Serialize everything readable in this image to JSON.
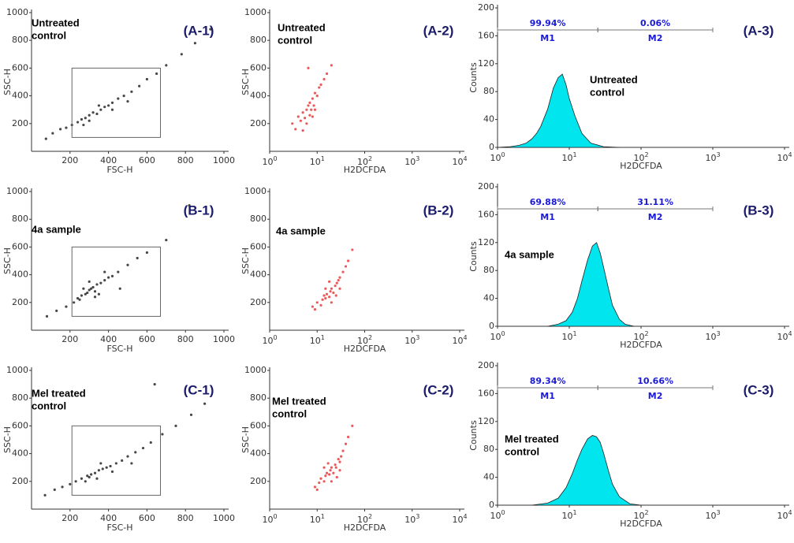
{
  "chart_data": [
    {
      "type": "scatter",
      "panel_label": "(A-1)",
      "annotation": [
        "Untreated",
        "control"
      ],
      "xlabel": "FSC-H",
      "ylabel": "SSC-H",
      "color": "#1a1a1a",
      "x": [
        75,
        110,
        150,
        180,
        210,
        240,
        260,
        280,
        300,
        320,
        340,
        360,
        380,
        400,
        420,
        450,
        480,
        520,
        560,
        600,
        650,
        700,
        780,
        850,
        930,
        300,
        350,
        270,
        420,
        500
      ],
      "y": [
        90,
        130,
        160,
        170,
        190,
        210,
        230,
        240,
        260,
        280,
        270,
        300,
        320,
        330,
        350,
        380,
        400,
        430,
        470,
        520,
        560,
        620,
        700,
        780,
        880,
        220,
        330,
        190,
        300,
        360
      ],
      "gate": {
        "x": [
          210,
          670
        ],
        "y": [
          100,
          600
        ]
      },
      "xlim": [
        0,
        1000
      ],
      "xticks": [
        200,
        400,
        600,
        800,
        1000
      ],
      "ylim": [
        0,
        1000
      ],
      "yticks": [
        200,
        400,
        600,
        800,
        1000
      ]
    },
    {
      "type": "scatter",
      "panel_label": "(A-2)",
      "annotation": [
        "Untreated",
        "control"
      ],
      "xlabel": "H2DCFDA",
      "ylabel": "SSC-H",
      "color": "#e83030",
      "xscale": "log",
      "x": [
        3,
        3.5,
        4,
        4.5,
        5,
        5.5,
        6,
        6.5,
        7,
        7,
        7.5,
        8,
        8.5,
        9,
        10,
        11,
        12,
        14,
        16,
        20,
        5,
        6,
        8,
        9,
        6.5
      ],
      "y": [
        200,
        160,
        250,
        220,
        280,
        240,
        300,
        330,
        260,
        350,
        300,
        380,
        330,
        420,
        400,
        460,
        480,
        520,
        560,
        620,
        150,
        200,
        250,
        300,
        600
      ],
      "xlim": [
        1,
        10000
      ],
      "xticks": [
        {
          "value": 1,
          "label": "10",
          "sup": "0"
        },
        {
          "value": 10,
          "label": "10",
          "sup": "1"
        },
        {
          "value": 100,
          "label": "10",
          "sup": "2"
        },
        {
          "value": 1000,
          "label": "10",
          "sup": "3"
        },
        {
          "value": 10000,
          "label": "10",
          "sup": "4"
        }
      ],
      "ylim": [
        0,
        1000
      ],
      "yticks": [
        200,
        400,
        600,
        800,
        1000
      ]
    },
    {
      "type": "area",
      "panel_label": "(A-3)",
      "annotation": [
        "Untreated",
        "control"
      ],
      "xlabel": "H2DCFDA",
      "ylabel": "Counts",
      "color": "#00e5ee",
      "xscale": "log",
      "x": [
        1,
        1.5,
        2,
        2.5,
        3,
        3.5,
        4,
        5,
        6,
        7,
        8,
        9,
        10,
        12,
        15,
        20,
        30,
        50
      ],
      "values": [
        0,
        1,
        3,
        6,
        12,
        20,
        30,
        55,
        85,
        100,
        105,
        90,
        70,
        45,
        20,
        6,
        1,
        0
      ],
      "markers": [
        {
          "name": "M1",
          "range": [
            1,
            25
          ],
          "percent": 99.94,
          "value_label": "99.94%"
        },
        {
          "name": "M2",
          "range": [
            25,
            1000
          ],
          "percent": 0.06,
          "value_label": "0.06%"
        }
      ],
      "xlim": [
        1,
        10000
      ],
      "xticks": [
        {
          "value": 1,
          "label": "10",
          "sup": "0"
        },
        {
          "value": 10,
          "label": "10",
          "sup": "1"
        },
        {
          "value": 100,
          "label": "10",
          "sup": "2"
        },
        {
          "value": 1000,
          "label": "10",
          "sup": "3"
        },
        {
          "value": 10000,
          "label": "10",
          "sup": "4"
        }
      ],
      "ylim": [
        0,
        200
      ],
      "yticks": [
        0,
        40,
        80,
        120,
        160,
        200
      ]
    },
    {
      "type": "scatter",
      "panel_label": "(B-1)",
      "annotation": [
        "4a sample"
      ],
      "xlabel": "FSC-H",
      "ylabel": "SSC-H",
      "color": "#1a1a1a",
      "x": [
        80,
        130,
        180,
        220,
        240,
        260,
        280,
        290,
        300,
        310,
        320,
        330,
        340,
        360,
        380,
        400,
        420,
        450,
        500,
        550,
        600,
        700,
        250,
        350,
        300,
        270,
        330,
        460,
        820,
        380
      ],
      "y": [
        100,
        140,
        170,
        200,
        230,
        250,
        260,
        270,
        290,
        300,
        310,
        280,
        330,
        340,
        360,
        380,
        390,
        420,
        470,
        520,
        560,
        650,
        220,
        260,
        350,
        300,
        240,
        300,
        900,
        420
      ],
      "gate": {
        "x": [
          210,
          670
        ],
        "y": [
          100,
          600
        ]
      },
      "xlim": [
        0,
        1000
      ],
      "xticks": [
        200,
        400,
        600,
        800,
        1000
      ],
      "ylim": [
        0,
        1000
      ],
      "yticks": [
        200,
        400,
        600,
        800,
        1000
      ]
    },
    {
      "type": "scatter",
      "panel_label": "(B-2)",
      "annotation": [
        "4a sample"
      ],
      "xlabel": "H2DCFDA",
      "ylabel": "SSC-H",
      "color": "#e83030",
      "xscale": "log",
      "x": [
        8,
        9,
        10,
        12,
        13,
        14,
        15,
        16,
        18,
        19,
        20,
        22,
        24,
        26,
        28,
        30,
        35,
        40,
        45,
        55,
        15,
        20,
        25,
        30,
        18
      ],
      "y": [
        170,
        150,
        200,
        180,
        220,
        250,
        230,
        260,
        240,
        280,
        300,
        270,
        320,
        340,
        360,
        380,
        420,
        460,
        500,
        580,
        300,
        200,
        250,
        300,
        350
      ],
      "xlim": [
        1,
        10000
      ],
      "xticks": [
        {
          "value": 1,
          "label": "10",
          "sup": "0"
        },
        {
          "value": 10,
          "label": "10",
          "sup": "1"
        },
        {
          "value": 100,
          "label": "10",
          "sup": "2"
        },
        {
          "value": 1000,
          "label": "10",
          "sup": "3"
        },
        {
          "value": 10000,
          "label": "10",
          "sup": "4"
        }
      ],
      "ylim": [
        0,
        1000
      ],
      "yticks": [
        200,
        400,
        600,
        800,
        1000
      ]
    },
    {
      "type": "area",
      "panel_label": "(B-3)",
      "annotation": [
        "4a sample"
      ],
      "xlabel": "H2DCFDA",
      "ylabel": "Counts",
      "color": "#00e5ee",
      "xscale": "log",
      "x": [
        5,
        7,
        9,
        11,
        13,
        15,
        18,
        21,
        24,
        27,
        30,
        35,
        40,
        50,
        60,
        80
      ],
      "values": [
        0,
        3,
        8,
        20,
        40,
        65,
        95,
        115,
        120,
        105,
        85,
        55,
        30,
        10,
        3,
        0
      ],
      "markers": [
        {
          "name": "M1",
          "range": [
            1,
            25
          ],
          "percent": 69.88,
          "value_label": "69.88%"
        },
        {
          "name": "M2",
          "range": [
            25,
            1000
          ],
          "percent": 31.11,
          "value_label": "31.11%"
        }
      ],
      "xlim": [
        1,
        10000
      ],
      "xticks": [
        {
          "value": 1,
          "label": "10",
          "sup": "0"
        },
        {
          "value": 10,
          "label": "10",
          "sup": "1"
        },
        {
          "value": 100,
          "label": "10",
          "sup": "2"
        },
        {
          "value": 1000,
          "label": "10",
          "sup": "3"
        },
        {
          "value": 10000,
          "label": "10",
          "sup": "4"
        }
      ],
      "ylim": [
        0,
        200
      ],
      "yticks": [
        0,
        40,
        80,
        120,
        160,
        200
      ]
    },
    {
      "type": "scatter",
      "panel_label": "(C-1)",
      "annotation": [
        "Mel treated",
        "control"
      ],
      "xlabel": "FSC-H",
      "ylabel": "SSC-H",
      "color": "#1a1a1a",
      "x": [
        70,
        120,
        160,
        200,
        230,
        260,
        290,
        310,
        330,
        350,
        370,
        390,
        410,
        440,
        470,
        500,
        540,
        580,
        620,
        680,
        750,
        830,
        900,
        280,
        360,
        420,
        300,
        340,
        520,
        640
      ],
      "y": [
        100,
        140,
        160,
        180,
        200,
        220,
        240,
        250,
        260,
        280,
        290,
        300,
        310,
        330,
        350,
        380,
        410,
        440,
        480,
        540,
        600,
        680,
        760,
        200,
        330,
        270,
        230,
        220,
        330,
        900
      ],
      "gate": {
        "x": [
          210,
          670
        ],
        "y": [
          100,
          600
        ]
      },
      "xlim": [
        0,
        1000
      ],
      "xticks": [
        200,
        400,
        600,
        800,
        1000
      ],
      "ylim": [
        0,
        1000
      ],
      "yticks": [
        200,
        400,
        600,
        800,
        1000
      ]
    },
    {
      "type": "scatter",
      "panel_label": "(C-2)",
      "annotation": [
        "Mel treated",
        "control"
      ],
      "xlabel": "H2DCFDA",
      "ylabel": "SSC-H",
      "color": "#e83030",
      "xscale": "log",
      "x": [
        9,
        10,
        11,
        12,
        14,
        15,
        16,
        18,
        19,
        20,
        22,
        24,
        25,
        28,
        30,
        32,
        35,
        40,
        45,
        55,
        14,
        20,
        26,
        30,
        17
      ],
      "y": [
        160,
        140,
        190,
        220,
        200,
        240,
        260,
        250,
        280,
        300,
        260,
        320,
        300,
        360,
        340,
        380,
        420,
        470,
        520,
        600,
        300,
        200,
        230,
        280,
        330
      ],
      "xlim": [
        1,
        10000
      ],
      "xticks": [
        {
          "value": 1,
          "label": "10",
          "sup": "0"
        },
        {
          "value": 10,
          "label": "10",
          "sup": "1"
        },
        {
          "value": 100,
          "label": "10",
          "sup": "2"
        },
        {
          "value": 1000,
          "label": "10",
          "sup": "3"
        },
        {
          "value": 10000,
          "label": "10",
          "sup": "4"
        }
      ],
      "ylim": [
        0,
        1000
      ],
      "yticks": [
        200,
        400,
        600,
        800,
        1000
      ]
    },
    {
      "type": "area",
      "panel_label": "(C-3)",
      "annotation": [
        "Mel treated",
        "control"
      ],
      "xlabel": "H2DCFDA",
      "ylabel": "Counts",
      "color": "#00e5ee",
      "xscale": "log",
      "x": [
        3,
        5,
        7,
        9,
        11,
        13,
        15,
        18,
        21,
        24,
        27,
        30,
        35,
        40,
        50,
        70,
        100
      ],
      "values": [
        0,
        3,
        10,
        25,
        45,
        65,
        80,
        95,
        100,
        98,
        90,
        75,
        50,
        30,
        12,
        2,
        0
      ],
      "markers": [
        {
          "name": "M1",
          "range": [
            1,
            25
          ],
          "percent": 89.34,
          "value_label": "89.34%"
        },
        {
          "name": "M2",
          "range": [
            25,
            1000
          ],
          "percent": 10.66,
          "value_label": "10.66%"
        }
      ],
      "xlim": [
        1,
        10000
      ],
      "xticks": [
        {
          "value": 1,
          "label": "10",
          "sup": "0"
        },
        {
          "value": 10,
          "label": "10",
          "sup": "1"
        },
        {
          "value": 100,
          "label": "10",
          "sup": "2"
        },
        {
          "value": 1000,
          "label": "10",
          "sup": "3"
        },
        {
          "value": 10000,
          "label": "10",
          "sup": "4"
        }
      ],
      "ylim": [
        0,
        200
      ],
      "yticks": [
        0,
        40,
        80,
        120,
        160,
        200
      ]
    }
  ]
}
